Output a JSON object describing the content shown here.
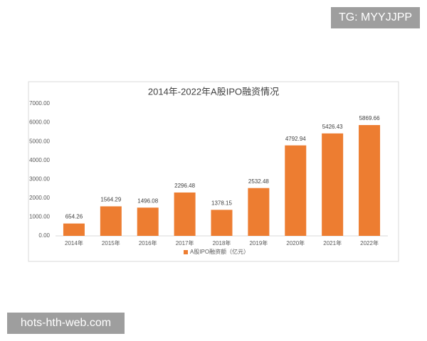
{
  "overlays": {
    "top_right": "TG: MYYJJPP",
    "bottom_left": "hots-hth-web.com"
  },
  "chart_data": {
    "type": "bar",
    "title": "2014年-2022年A股IPO融资情况",
    "categories": [
      "2014年",
      "2015年",
      "2016年",
      "2017年",
      "2018年",
      "2019年",
      "2020年",
      "2021年",
      "2022年"
    ],
    "series": [
      {
        "name": "A股IPO融资额（亿元）",
        "color": "#ed7d31",
        "values": [
          654.26,
          1564.29,
          1496.08,
          2296.48,
          1378.15,
          2532.48,
          4792.94,
          5426.43,
          5869.66
        ]
      }
    ],
    "ylim": [
      0,
      7000
    ],
    "yticks": [
      {
        "value": 0,
        "label": "0.00"
      },
      {
        "value": 1000,
        "label": "1000.00"
      },
      {
        "value": 2000,
        "label": "2000.00"
      },
      {
        "value": 3000,
        "label": "3000.00"
      },
      {
        "value": 4000,
        "label": "4000.00"
      },
      {
        "value": 5000,
        "label": "5000.00"
      },
      {
        "value": 6000,
        "label": "6000.00"
      },
      {
        "value": 7000,
        "label": "7000.00"
      }
    ],
    "grid": false,
    "legend": "bottom"
  }
}
